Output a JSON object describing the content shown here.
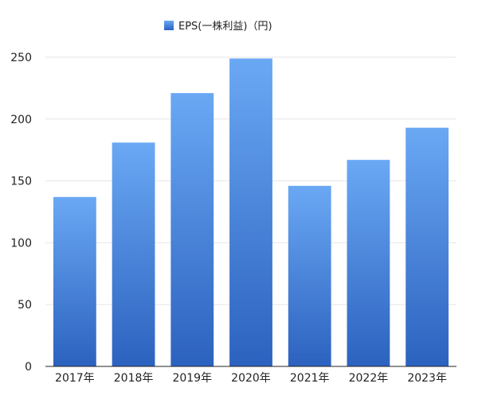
{
  "chart_data": {
    "type": "bar",
    "categories": [
      "2017年",
      "2018年",
      "2019年",
      "2020年",
      "2021年",
      "2022年",
      "2023年"
    ],
    "series": [
      {
        "name": "EPS(一株利益)（円)",
        "values": [
          137,
          181,
          221,
          249,
          146,
          167,
          193
        ]
      }
    ],
    "ylim": [
      0,
      250
    ],
    "yticks": [
      0,
      50,
      100,
      150,
      200,
      250
    ],
    "grid": true,
    "legend": "top-center",
    "colors": {
      "bar_top": "#6aa8f4",
      "bar_bottom": "#2c62bf",
      "grid": "#e6e6e6",
      "axis": "#222222"
    }
  }
}
